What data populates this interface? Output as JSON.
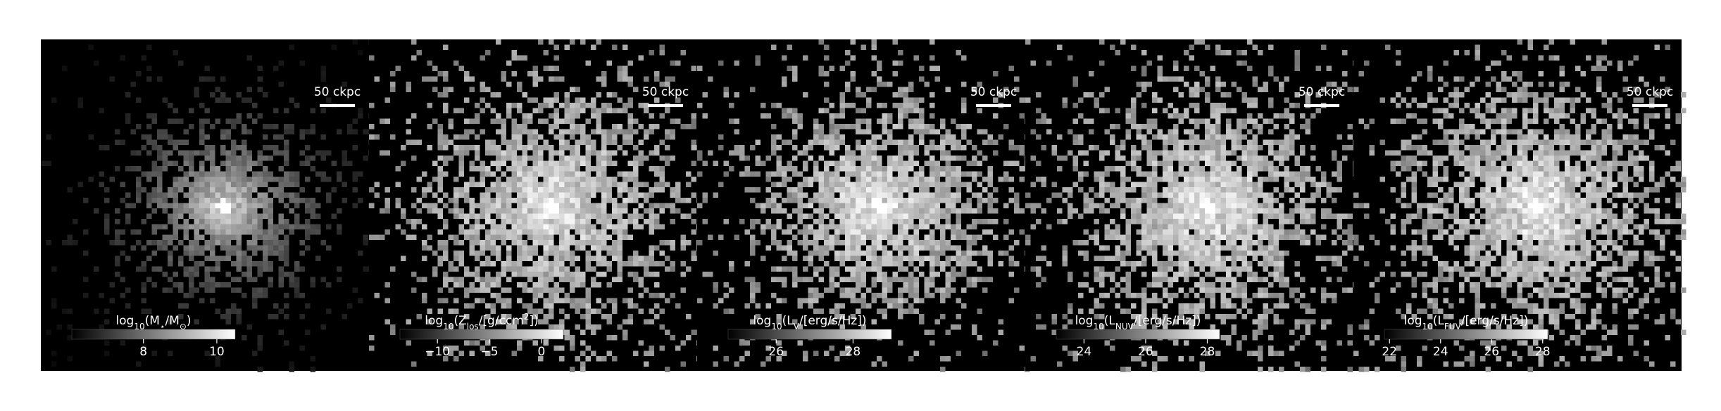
{
  "panels": [
    {
      "scale_bar": "50 ckpc",
      "colorbar": {
        "label_parts": [
          {
            "text": "log"
          },
          {
            "text": "10",
            "sub": true
          },
          {
            "text": "(M"
          },
          {
            "text": "⋆",
            "sub": true
          },
          {
            "text": "/M"
          },
          {
            "text": "⊙",
            "sub": true
          },
          {
            "text": ")"
          }
        ],
        "clim": [
          6.05,
          10.5
        ],
        "ticks": [
          8,
          10
        ]
      }
    },
    {
      "scale_bar": "50 ckpc",
      "colorbar": {
        "label_parts": [
          {
            "text": "log"
          },
          {
            "text": "10",
            "sub": true
          },
          {
            "text": "(Z"
          },
          {
            "text": "los",
            "sub": true
          },
          {
            "text": "/[g/ccm"
          },
          {
            "text": "2",
            "sup": true
          },
          {
            "text": "])"
          }
        ],
        "clim": [
          -13.6,
          2.1
        ],
        "ticks": [
          {
            "value": -10,
            "label": "−10"
          },
          {
            "value": -5,
            "label": "−5"
          },
          0
        ]
      }
    },
    {
      "scale_bar": "50 ckpc",
      "colorbar": {
        "label_parts": [
          {
            "text": "log"
          },
          {
            "text": "10",
            "sub": true
          },
          {
            "text": "(L"
          },
          {
            "text": "V",
            "sub": true
          },
          {
            "text": "/[erg/s/Hz])"
          }
        ],
        "clim": [
          24.75,
          29.0
        ],
        "ticks": [
          26,
          28
        ]
      }
    },
    {
      "scale_bar": "50 ckpc",
      "colorbar": {
        "label_parts": [
          {
            "text": "log"
          },
          {
            "text": "10",
            "sub": true
          },
          {
            "text": "(L"
          },
          {
            "text": "NUV",
            "sub": true
          },
          {
            "text": "/[erg/s/Hz])"
          }
        ],
        "clim": [
          23.1,
          28.4
        ],
        "ticks": [
          24,
          26,
          28
        ]
      }
    },
    {
      "scale_bar": "50 ckpc",
      "colorbar": {
        "label_parts": [
          {
            "text": "log"
          },
          {
            "text": "10",
            "sub": true
          },
          {
            "text": "(L"
          },
          {
            "text": "FUV",
            "sub": true
          },
          {
            "text": "/[erg/s/Hz])"
          }
        ],
        "clim": [
          21.8,
          28.2
        ],
        "ticks": [
          22,
          24,
          26,
          28
        ]
      }
    }
  ]
}
